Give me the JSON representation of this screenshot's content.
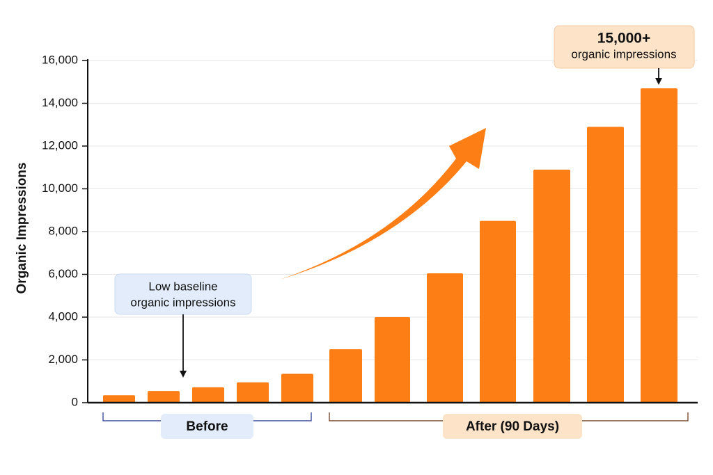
{
  "chart_data": {
    "type": "bar",
    "title": "",
    "xlabel": "",
    "ylabel": "Organic Impressions",
    "ylim": [
      0,
      16000
    ],
    "yticks": [
      0,
      2000,
      4000,
      6000,
      8000,
      10000,
      12000,
      14000,
      16000
    ],
    "ytick_labels": [
      "0",
      "2,000",
      "4,000",
      "6,000",
      "8,000",
      "10,000",
      "12,000",
      "14,000",
      "16,000"
    ],
    "grid": true,
    "values": [
      350,
      550,
      720,
      950,
      1350,
      2500,
      4000,
      6050,
      8500,
      10900,
      12900,
      14700
    ],
    "groups": [
      {
        "label": "Before",
        "start": 0,
        "end": 4,
        "bracket_color": "#3d4b9e",
        "box_color": "#e2ecfb"
      },
      {
        "label": "After (90 Days)",
        "start": 5,
        "end": 11,
        "bracket_color": "#7a4a2e",
        "box_color": "#fde3c8"
      }
    ],
    "annotations": [
      {
        "lines": [
          "Low baseline",
          "organic impressions"
        ],
        "points_to_bar": 1,
        "box_color": "#e2ecfb",
        "border_color": "#c9d9f2"
      },
      {
        "lines": [
          "15,000+",
          "organic impressions"
        ],
        "points_to_bar": 11,
        "box_color": "#fde3c8",
        "border_color": "#f3c9a0"
      }
    ],
    "trend_arrow": true,
    "bar_color": "#fd7e14",
    "grid_color": "#e6e6e6"
  }
}
